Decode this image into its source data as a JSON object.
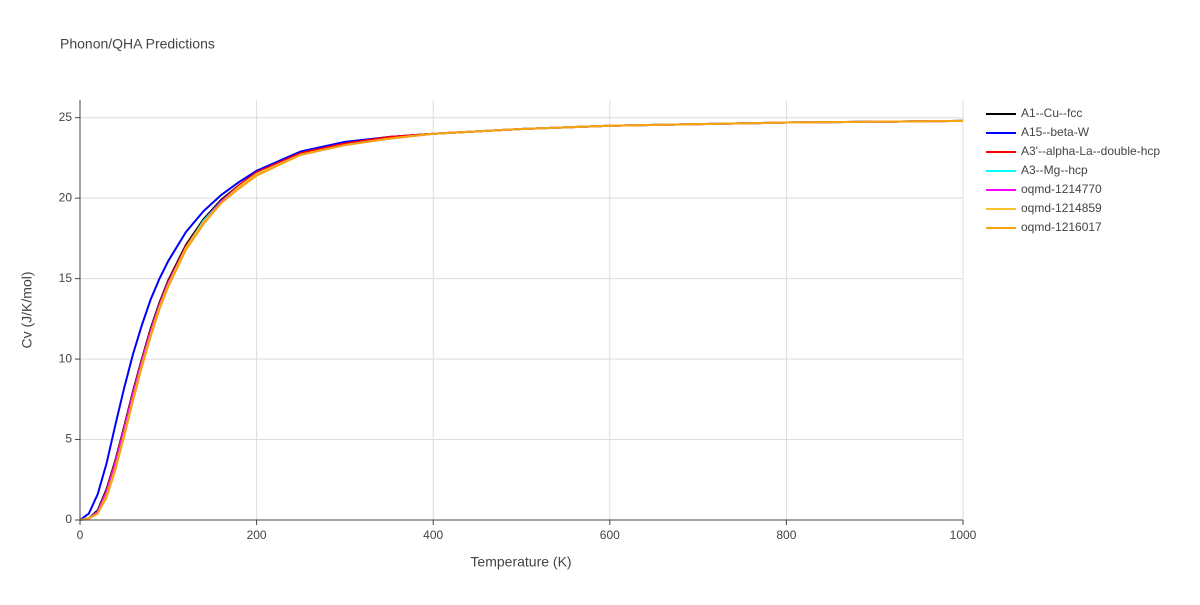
{
  "chart_data": {
    "type": "line",
    "title": "Phonon/QHA Predictions",
    "x_label": "Temperature (K)",
    "y_label": "Cv (J/K/mol)",
    "x": [
      0,
      10,
      20,
      30,
      40,
      50,
      60,
      70,
      80,
      90,
      100,
      120,
      140,
      160,
      180,
      200,
      250,
      300,
      350,
      400,
      500,
      600,
      700,
      800,
      900,
      1000
    ],
    "series": [
      {
        "name": "A1--Cu--fcc",
        "color": "#000000",
        "values": [
          0,
          0.1,
          0.6,
          1.9,
          3.7,
          5.8,
          8.0,
          10.0,
          11.9,
          13.5,
          14.9,
          17.1,
          18.7,
          19.9,
          20.8,
          21.6,
          22.8,
          23.4,
          23.8,
          24.0,
          24.3,
          24.5,
          24.6,
          24.7,
          24.75,
          24.8
        ]
      },
      {
        "name": "A15--beta-W",
        "color": "#0000ff",
        "values": [
          0,
          0.4,
          1.6,
          3.5,
          5.9,
          8.2,
          10.3,
          12.1,
          13.7,
          15.0,
          16.1,
          17.9,
          19.2,
          20.2,
          21.0,
          21.7,
          22.9,
          23.5,
          23.8,
          24.0,
          24.3,
          24.5,
          24.6,
          24.7,
          24.75,
          24.8
        ]
      },
      {
        "name": "A3'--alpha-La--double-hcp",
        "color": "#ff0000",
        "values": [
          0,
          0.1,
          0.5,
          1.8,
          3.6,
          5.7,
          7.9,
          9.9,
          11.8,
          13.4,
          14.8,
          17.0,
          18.6,
          19.8,
          20.8,
          21.6,
          22.8,
          23.4,
          23.8,
          24.0,
          24.3,
          24.5,
          24.6,
          24.7,
          24.75,
          24.8
        ]
      },
      {
        "name": "A3--Mg--hcp",
        "color": "#00ffff",
        "values": [
          0,
          0.1,
          0.5,
          1.7,
          3.5,
          5.6,
          7.8,
          9.8,
          11.7,
          13.3,
          14.7,
          16.9,
          18.6,
          19.8,
          20.7,
          21.5,
          22.7,
          23.3,
          23.7,
          24.0,
          24.3,
          24.5,
          24.6,
          24.7,
          24.75,
          24.8
        ]
      },
      {
        "name": "oqmd-1214770",
        "color": "#ff00ff",
        "values": [
          0,
          0.1,
          0.5,
          1.7,
          3.5,
          5.6,
          7.8,
          9.8,
          11.7,
          13.3,
          14.7,
          16.9,
          18.5,
          19.8,
          20.7,
          21.5,
          22.7,
          23.3,
          23.7,
          24.0,
          24.3,
          24.5,
          24.6,
          24.7,
          24.75,
          24.8
        ]
      },
      {
        "name": "oqmd-1214859",
        "color": "#fbc02d",
        "values": [
          0,
          0.1,
          0.4,
          1.5,
          3.2,
          5.3,
          7.5,
          9.6,
          11.5,
          13.2,
          14.6,
          16.9,
          18.5,
          19.7,
          20.7,
          21.5,
          22.7,
          23.3,
          23.7,
          24.0,
          24.3,
          24.5,
          24.6,
          24.7,
          24.75,
          24.8
        ]
      },
      {
        "name": "oqmd-1216017",
        "color": "#f5a30f",
        "values": [
          0,
          0.1,
          0.4,
          1.4,
          3.1,
          5.2,
          7.4,
          9.5,
          11.4,
          13.1,
          14.5,
          16.8,
          18.4,
          19.7,
          20.6,
          21.4,
          22.7,
          23.3,
          23.7,
          24.0,
          24.3,
          24.5,
          24.6,
          24.7,
          24.75,
          24.8
        ]
      }
    ],
    "xlim": [
      0,
      1000
    ],
    "xticks": [
      0,
      200,
      400,
      600,
      800,
      1000
    ],
    "ylim": [
      0,
      26.1
    ],
    "yticks": [
      0,
      5,
      10,
      15,
      20,
      25
    ],
    "grid": true,
    "legend": "right"
  }
}
